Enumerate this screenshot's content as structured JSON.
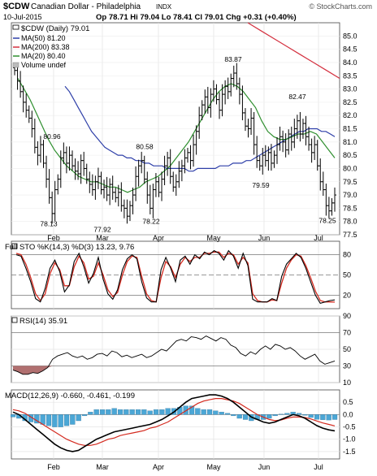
{
  "header": {
    "symbol": "$CDW",
    "name": "Canadian Dollar - Philadelphia",
    "exchange": "INDX",
    "watermark": "© StockCharts.com",
    "date": "10-Jul-2015",
    "quote": "Op 78.71  Hi 79.04  Lo 78.41  Cl 79.01  Chg +0.31 (+0.40%)"
  },
  "legend": {
    "main": "$CDW (Daily) 79.01",
    "ma50": "MA(50) 81.20",
    "ma200": "MA(200) 83.38",
    "ma20": "MA(20) 80.40",
    "volume": "Volume undef"
  },
  "x_labels": [
    "Feb",
    "Mar",
    "Apr",
    "May",
    "Jun",
    "Jul"
  ],
  "colors": {
    "ma50": "#2e3fa8",
    "ma200": "#d4303f",
    "ma20": "#2f8f2f",
    "price": "#000000",
    "sto_d": "#d42a1f",
    "rsi_fill": "#a86060",
    "macd_hist": "#4ba7d6"
  },
  "chart_data": [
    {
      "type": "ohlc",
      "panel": "price",
      "ylim": [
        77.5,
        85.5
      ],
      "yticks": [
        77.5,
        78.0,
        78.5,
        79.0,
        79.5,
        80.0,
        80.5,
        81.0,
        81.5,
        82.0,
        82.5,
        83.0,
        83.5,
        84.0,
        84.5,
        85.0
      ],
      "ytick_labels": [
        "77.5",
        "78.0",
        "78.5",
        "79.0",
        "79.5",
        "80.0",
        "80.5",
        "81.0",
        "81.5",
        "82.0",
        "82.5",
        "83.0",
        "83.5",
        "84.0",
        "84.5",
        "85.0"
      ],
      "annotations": [
        {
          "label": "80.96",
          "value": 80.96
        },
        {
          "label": "78.13",
          "value": 78.13
        },
        {
          "label": "77.92",
          "value": 77.92
        },
        {
          "label": "80.58",
          "value": 80.58
        },
        {
          "label": "78.22",
          "value": 78.22
        },
        {
          "label": "83.87",
          "value": 83.87
        },
        {
          "label": "79.59",
          "value": 79.59
        },
        {
          "label": "82.47",
          "value": 82.47
        },
        {
          "label": "78.25",
          "value": 78.25
        }
      ],
      "close": [
        83.7,
        83.3,
        82.9,
        82.5,
        82.2,
        81.9,
        81.5,
        80.8,
        80.5,
        80.9,
        80.2,
        79.6,
        78.9,
        78.3,
        79.2,
        79.6,
        80.4,
        80.6,
        80.2,
        80.5,
        80.1,
        79.9,
        79.8,
        80.3,
        80.0,
        79.6,
        79.4,
        79.2,
        79.5,
        79.7,
        79.2,
        79.3,
        79.0,
        79.4,
        79.1,
        78.9,
        79.1,
        78.6,
        78.5,
        78.2,
        78.6,
        79.0,
        79.7,
        80.1,
        80.3,
        79.6,
        79.0,
        78.5,
        79.2,
        79.5,
        79.1,
        79.6,
        80.1,
        80.4,
        79.7,
        79.3,
        79.5,
        79.9,
        80.1,
        80.4,
        80.6,
        80.3,
        80.9,
        81.4,
        82.0,
        82.4,
        82.7,
        82.3,
        82.8,
        83.0,
        82.6,
        82.2,
        82.8,
        83.1,
        82.9,
        83.4,
        83.6,
        83.2,
        82.8,
        82.1,
        81.6,
        81.5,
        81.9,
        80.9,
        80.3,
        80.1,
        80.5,
        80.3,
        80.6,
        80.2,
        80.5,
        80.9,
        81.2,
        81.0,
        80.7,
        81.3,
        81.0,
        81.5,
        81.8,
        81.3,
        81.7,
        81.2,
        80.9,
        80.6,
        80.9,
        80.1,
        79.5,
        79.2,
        78.6,
        78.4,
        78.7,
        79.0
      ],
      "series": [
        {
          "name": "MA(50)",
          "values": [
            83.1,
            82.9,
            82.6,
            82.3,
            82.0,
            81.7,
            81.4,
            81.2,
            81.0,
            80.8,
            80.7,
            80.6,
            80.5,
            80.5,
            80.4,
            80.4,
            80.3,
            80.3,
            80.2,
            80.2,
            80.1,
            80.1,
            80.1,
            80.0,
            80.0,
            80.0,
            80.0,
            80.0,
            79.9,
            79.9,
            80.0,
            80.0,
            80.0,
            80.0,
            80.0,
            80.1,
            80.1,
            80.1,
            80.2,
            80.2,
            80.2,
            80.3,
            80.3,
            80.4,
            80.5,
            80.6,
            80.7,
            80.8,
            80.9,
            81.0,
            81.1,
            81.2,
            81.3,
            81.4,
            81.4,
            81.5,
            81.5,
            81.5,
            81.4,
            81.4,
            81.3,
            81.2
          ]
        },
        {
          "name": "MA(200)",
          "values": [
            85.5,
            85.2,
            84.9,
            84.6,
            84.3,
            84.0,
            83.7,
            83.4
          ]
        },
        {
          "name": "MA(20)",
          "values": [
            83.4,
            83.0,
            82.6,
            82.1,
            81.6,
            81.1,
            80.7,
            80.4,
            80.1,
            79.9,
            79.7,
            79.6,
            79.5,
            79.5,
            79.4,
            79.3,
            79.3,
            79.2,
            79.1,
            79.2,
            79.3,
            79.5,
            79.6,
            79.7,
            79.9,
            80.1,
            80.4,
            80.7,
            81.0,
            81.4,
            81.8,
            82.2,
            82.6,
            82.9,
            83.1,
            83.2,
            83.1,
            82.9,
            82.6,
            82.3,
            81.8,
            81.4,
            81.2,
            81.1,
            81.1,
            81.2,
            81.3,
            81.3,
            81.4,
            81.3,
            81.0,
            80.7,
            80.4
          ]
        }
      ]
    },
    {
      "type": "line",
      "panel": "stochastic",
      "title": "Full STO %K(14,3) %D(3) 13.23, 9.76",
      "label_k": "13.23",
      "label_d": "9.76",
      "ylim": [
        0,
        100
      ],
      "yticks": [
        20,
        50,
        80
      ],
      "ytick_labels": [
        "20",
        "50",
        "80"
      ],
      "series": [
        {
          "name": "%K",
          "values": [
            80,
            78,
            60,
            40,
            15,
            10,
            30,
            60,
            72,
            55,
            25,
            35,
            70,
            82,
            62,
            38,
            52,
            76,
            44,
            22,
            14,
            28,
            58,
            74,
            80,
            74,
            40,
            16,
            10,
            10,
            58,
            76,
            60,
            40,
            72,
            78,
            66,
            80,
            74,
            84,
            80,
            86,
            82,
            72,
            86,
            78,
            60,
            82,
            64,
            14,
            10,
            10,
            10,
            15,
            12,
            48,
            66,
            74,
            82,
            76,
            60,
            40,
            20,
            8,
            10,
            12,
            13
          ]
        },
        {
          "name": "%D",
          "values": [
            82,
            80,
            66,
            46,
            22,
            12,
            22,
            52,
            68,
            58,
            34,
            34,
            62,
            78,
            68,
            44,
            48,
            68,
            50,
            28,
            18,
            24,
            50,
            70,
            78,
            76,
            48,
            22,
            12,
            10,
            46,
            70,
            62,
            46,
            66,
            76,
            70,
            76,
            76,
            82,
            82,
            84,
            84,
            76,
            82,
            80,
            66,
            76,
            68,
            22,
            12,
            10,
            10,
            13,
            12,
            38,
            60,
            72,
            80,
            78,
            64,
            46,
            26,
            12,
            10,
            10,
            9.76
          ]
        }
      ]
    },
    {
      "type": "area",
      "panel": "rsi",
      "title": "RSI(14) 35.91",
      "value_label": "35.91",
      "ylim": [
        10,
        90
      ],
      "yticks": [
        10,
        30,
        50,
        70,
        90
      ],
      "ytick_labels": [
        "10",
        "30",
        "50",
        "70",
        "90"
      ],
      "values": [
        25,
        23,
        20,
        20,
        22,
        21,
        24,
        28,
        38,
        42,
        44,
        46,
        42,
        40,
        42,
        38,
        40,
        44,
        45,
        42,
        48,
        46,
        41,
        43,
        40,
        42,
        44,
        40,
        42,
        46,
        50,
        48,
        54,
        60,
        62,
        60,
        65,
        64,
        62,
        66,
        63,
        60,
        64,
        62,
        55,
        52,
        45,
        42,
        47,
        44,
        50,
        54,
        50,
        56,
        54,
        50,
        52,
        48,
        42,
        38,
        41,
        44,
        36,
        32,
        34,
        36
      ]
    },
    {
      "type": "bar",
      "panel": "macd",
      "title": "MACD(12,26,9) -0.660, -0.461, -0.199",
      "macd_label": "-0.660",
      "signal_label": "-0.461",
      "hist_label": "-0.199",
      "ylim": [
        -1.8,
        1.0
      ],
      "yticks": [
        -1.5,
        -1.0,
        -0.5,
        0.0,
        0.5
      ],
      "ytick_labels": [
        "-1.5",
        "-1.0",
        "-0.5",
        "0.0",
        "0.5"
      ],
      "series": [
        {
          "name": "MACD",
          "values": [
            0.1,
            0.0,
            -0.2,
            -0.4,
            -0.6,
            -0.8,
            -1.0,
            -1.2,
            -1.35,
            -1.45,
            -1.5,
            -1.45,
            -1.3,
            -1.15,
            -1.0,
            -0.9,
            -0.8,
            -0.7,
            -0.65,
            -0.6,
            -0.55,
            -0.5,
            -0.45,
            -0.4,
            -0.3,
            -0.2,
            -0.05,
            0.1,
            0.3,
            0.5,
            0.65,
            0.7,
            0.75,
            0.8,
            0.8,
            0.75,
            0.65,
            0.5,
            0.3,
            0.1,
            -0.1,
            -0.2,
            -0.3,
            -0.35,
            -0.3,
            -0.2,
            -0.1,
            0.0,
            -0.05,
            -0.15,
            -0.3,
            -0.45,
            -0.55,
            -0.62,
            -0.66
          ]
        },
        {
          "name": "Signal",
          "values": [
            0.2,
            0.15,
            0.05,
            -0.1,
            -0.25,
            -0.4,
            -0.55,
            -0.7,
            -0.85,
            -1.0,
            -1.1,
            -1.2,
            -1.25,
            -1.25,
            -1.2,
            -1.1,
            -1.0,
            -0.95,
            -0.85,
            -0.8,
            -0.75,
            -0.7,
            -0.65,
            -0.55,
            -0.5,
            -0.4,
            -0.3,
            -0.15,
            0.0,
            0.15,
            0.3,
            0.45,
            0.55,
            0.6,
            0.65,
            0.65,
            0.6,
            0.55,
            0.45,
            0.3,
            0.15,
            0.0,
            -0.1,
            -0.2,
            -0.25,
            -0.22,
            -0.15,
            -0.1,
            -0.1,
            -0.12,
            -0.18,
            -0.26,
            -0.34,
            -0.4,
            -0.46
          ]
        }
      ]
    }
  ]
}
